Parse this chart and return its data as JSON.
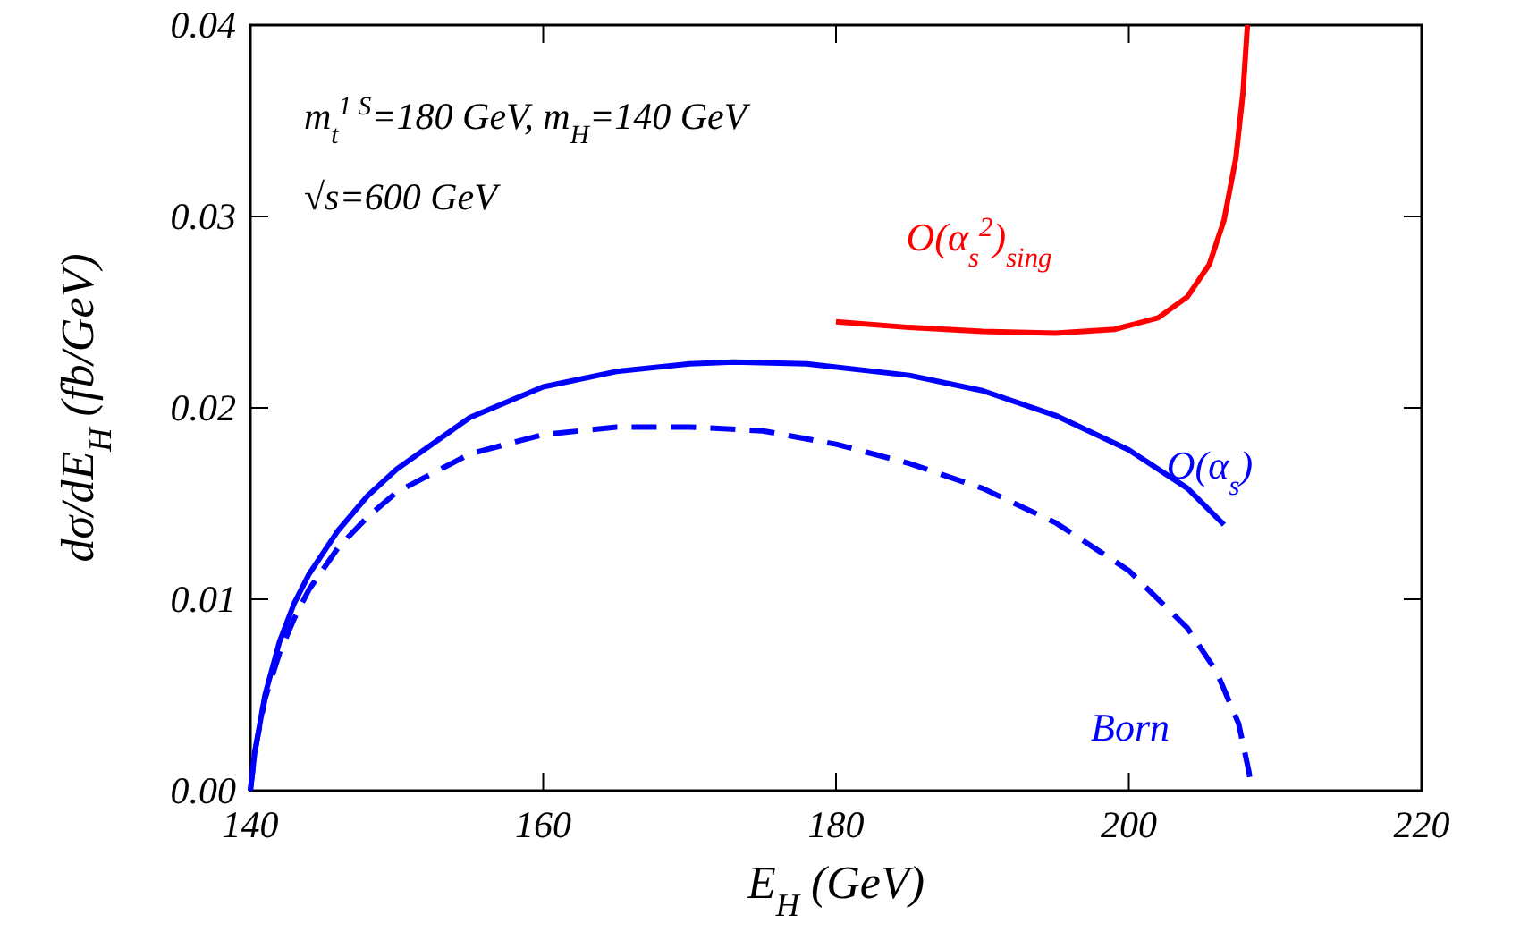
{
  "chart_data": {
    "type": "line",
    "xlabel": "E$_{H}$ (GeV)",
    "ylabel": "dσ/dE$_{H}$ (fb/GeV)",
    "xlim": [
      140,
      220
    ],
    "xticks": [
      140,
      160,
      180,
      200,
      220
    ],
    "ylim": [
      0,
      0.04
    ],
    "yticks": [
      {
        "value": 0,
        "label": "0.00"
      },
      {
        "value": 0.01,
        "label": "0.01"
      },
      {
        "value": 0.02,
        "label": "0.02"
      },
      {
        "value": 0.03,
        "label": "0.03"
      },
      {
        "value": 0.04,
        "label": "0.04"
      }
    ],
    "grid": false,
    "marker": "none",
    "annotations": [
      "m$_{t}$$^{1 S}$=180 GeV,  m$_{H}$=140 GeV",
      "√s=600 GeV"
    ],
    "series": [
      {
        "name": "O(α$_{s}$)",
        "color": "#0000ff",
        "line_style": "solid",
        "x": [
          140,
          140.3,
          141,
          142,
          143,
          144,
          146,
          148,
          150,
          155,
          160,
          165,
          170,
          173,
          178,
          185,
          190,
          195,
          200,
          204,
          206.5
        ],
        "values": [
          0,
          0.002,
          0.005,
          0.0078,
          0.0098,
          0.0113,
          0.0136,
          0.0154,
          0.0168,
          0.0195,
          0.0211,
          0.0219,
          0.0223,
          0.0224,
          0.0223,
          0.0217,
          0.0209,
          0.0196,
          0.0178,
          0.0158,
          0.0139
        ]
      },
      {
        "name": "Born",
        "color": "#0000ff",
        "line_style": "dashed",
        "x": [
          140,
          140.3,
          141,
          142,
          143,
          144,
          146,
          148,
          150,
          155,
          160,
          165,
          170,
          175,
          180,
          185,
          190,
          195,
          200,
          204,
          206,
          207.5,
          208.2,
          208.4
        ],
        "values": [
          0,
          0.002,
          0.0048,
          0.0072,
          0.009,
          0.0105,
          0.0127,
          0.0143,
          0.0156,
          0.0176,
          0.0186,
          0.019,
          0.019,
          0.0188,
          0.0181,
          0.0171,
          0.0158,
          0.014,
          0.0115,
          0.0085,
          0.0062,
          0.0035,
          0.001,
          0
        ]
      },
      {
        "name": "O(α$_{s}$$^{2}$)$_{sing}$",
        "color": "#ff0000",
        "line_style": "solid",
        "x": [
          180,
          185,
          190,
          195,
          199,
          202,
          204,
          205.5,
          206.5,
          207.3,
          207.8,
          208.1
        ],
        "values": [
          0.0245,
          0.0242,
          0.024,
          0.0239,
          0.0241,
          0.0247,
          0.0258,
          0.0275,
          0.0298,
          0.033,
          0.0365,
          0.04
        ]
      }
    ]
  }
}
